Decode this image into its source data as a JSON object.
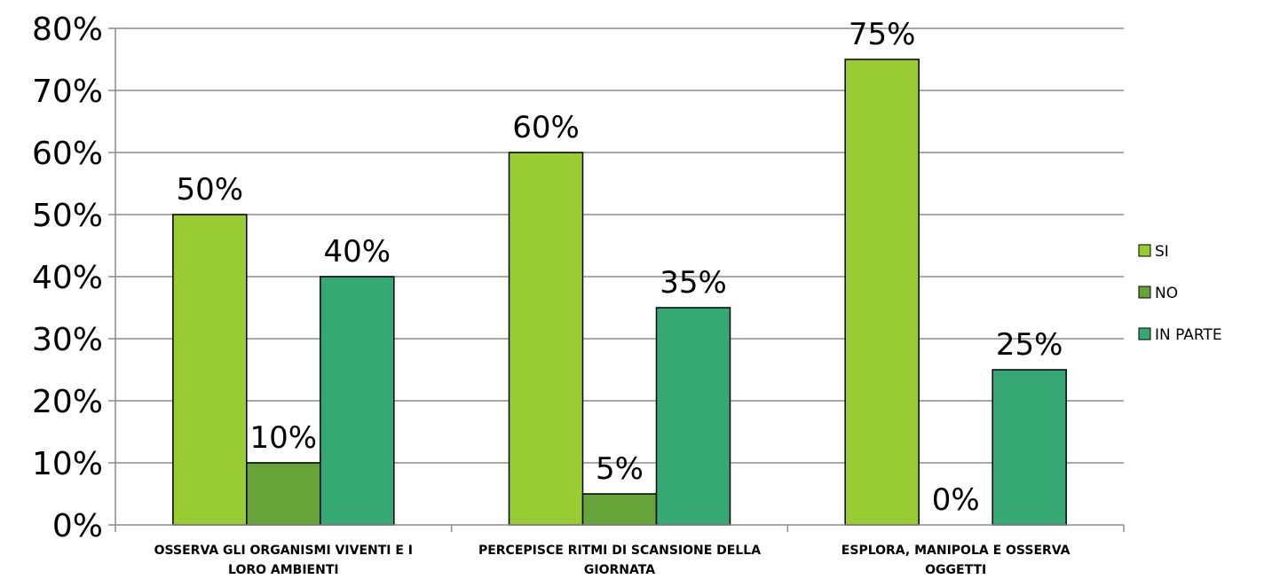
{
  "chart_data": {
    "type": "bar",
    "categories": [
      [
        "OSSERVA GLI ORGANISMI VIVENTI E I",
        "LORO AMBIENTI"
      ],
      [
        "PERCEPISCE RITMI DI SCANSIONE DELLA",
        "GIORNATA"
      ],
      [
        "ESPLORA, MANIPOLA E OSSERVA",
        "OGGETTI"
      ]
    ],
    "series": [
      {
        "name": "SI",
        "values": [
          50,
          60,
          75
        ],
        "labels": [
          "50%",
          "60%",
          "75%"
        ],
        "color": "#99CC33"
      },
      {
        "name": "NO",
        "values": [
          10,
          5,
          0
        ],
        "labels": [
          "10%",
          "5%",
          "0%"
        ],
        "color": "#66A338"
      },
      {
        "name": "IN PARTE",
        "values": [
          40,
          35,
          25
        ],
        "labels": [
          "40%",
          "35%",
          "25%"
        ],
        "color": "#35A873"
      }
    ],
    "ylim": [
      0,
      80
    ],
    "yticks": [
      0,
      10,
      20,
      30,
      40,
      50,
      60,
      70,
      80
    ],
    "ytick_labels": [
      "0%",
      "10%",
      "20%",
      "30%",
      "40%",
      "50%",
      "60%",
      "70%",
      "80%"
    ],
    "grid": true,
    "legend": "right",
    "title": "",
    "xlabel": "",
    "ylabel": ""
  }
}
